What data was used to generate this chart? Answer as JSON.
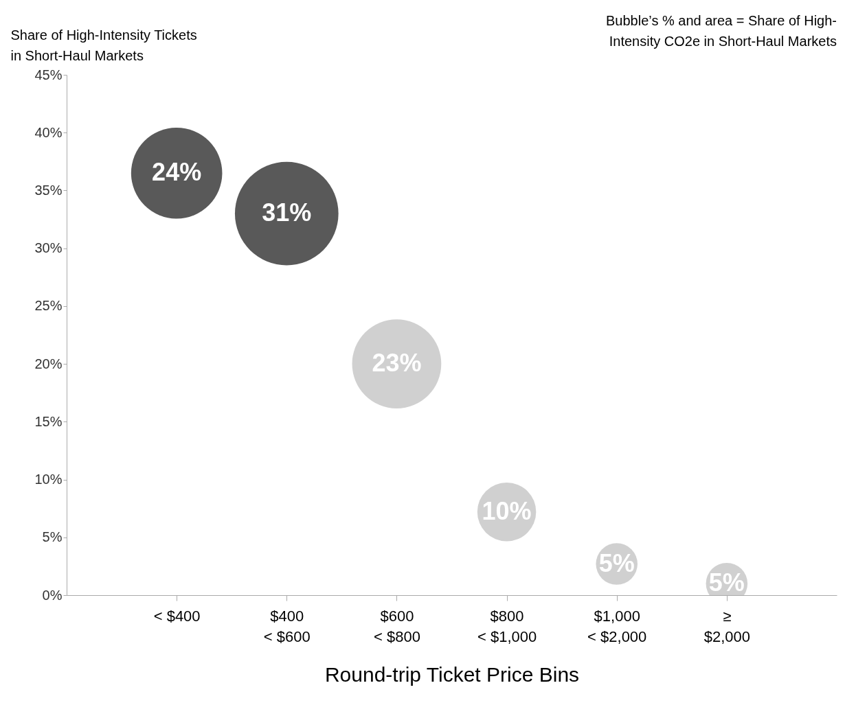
{
  "chart_data": {
    "type": "bubble",
    "ylabel": "Share of High-Intensity Tickets\nin Short-Haul Markets",
    "xlabel": "Round-trip Ticket Price Bins",
    "annotations": [
      "Bubble’s % and area = Share of High-\nIntensity CO2e in Short-Haul Markets"
    ],
    "categories": [
      "< $400",
      "$400\n< $600",
      "$600\n< $800",
      "$800\n< $1,000",
      "$1,000\n< $2,000",
      "≥\n$2,000"
    ],
    "values": [
      36.5,
      33.0,
      20.0,
      7.2,
      2.7,
      1.0
    ],
    "sizes": [
      24,
      31,
      23,
      10,
      5,
      5
    ],
    "value_labels": [
      "24%",
      "31%",
      "23%",
      "10%",
      "5%",
      "5%"
    ],
    "colors": [
      "#595959",
      "#595959",
      "#d0d0d0",
      "#d0d0d0",
      "#d0d0d0",
      "#d0d0d0"
    ],
    "ylim": [
      0,
      45
    ],
    "yticks": [
      {
        "value": 0,
        "label": "0%"
      },
      {
        "value": 5,
        "label": "5%"
      },
      {
        "value": 10,
        "label": "10%"
      },
      {
        "value": 15,
        "label": "15%"
      },
      {
        "value": 20,
        "label": "20%"
      },
      {
        "value": 25,
        "label": "25%"
      },
      {
        "value": 30,
        "label": "30%"
      },
      {
        "value": 35,
        "label": "35%"
      },
      {
        "value": 40,
        "label": "40%"
      },
      {
        "value": 45,
        "label": "45%"
      }
    ],
    "grid": false,
    "marker": "circle"
  }
}
